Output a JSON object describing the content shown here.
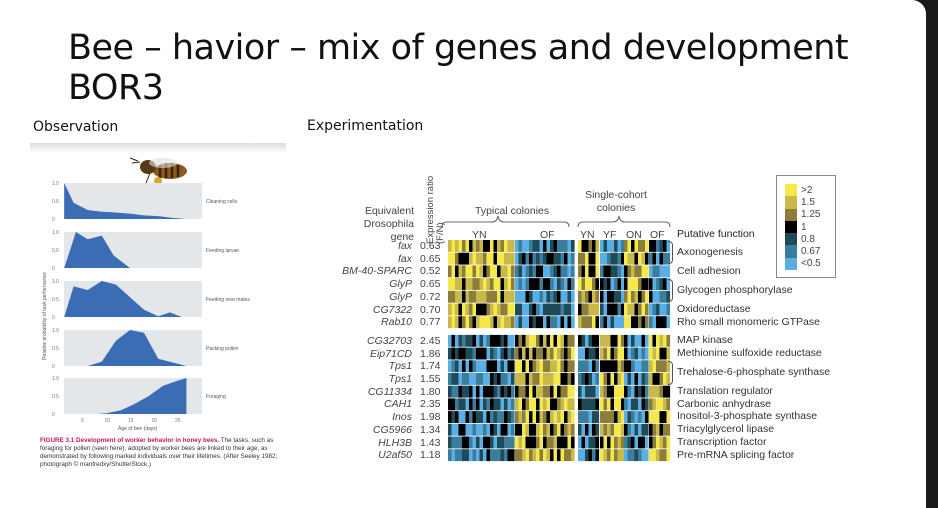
{
  "title_line1": "Bee – havior – mix of genes and development",
  "title_line2": "BOR3",
  "observation_label": "Observation",
  "experimentation_label": "Experimentation",
  "left_figure": {
    "y_axis_label": "Relative probability of task performance",
    "x_axis_label": "Age of bee (days)",
    "x_ticks": [
      "5",
      "10",
      "15",
      "20",
      "25"
    ],
    "y_ticks": [
      "0",
      "0.5",
      "1.0"
    ],
    "caption_bold": "FIGURE 3.1  Development of worker behavior in honey bees.",
    "caption_text": " The tasks, such as foraging for pollen (seen here), adopted by worker bees are linked to their age, as demonstrated by following marked individuals over their lifetimes. (After Seeley 1982; photograph © manfredxy/ShutterStock.)"
  },
  "chart_data": {
    "type": "area",
    "xlabel": "Age of bee (days)",
    "ylabel": "Relative probability of task performance",
    "xlim": [
      1,
      28
    ],
    "ylim": [
      0,
      1
    ],
    "series": [
      {
        "name": "Cleaning cells",
        "x": [
          1,
          3,
          6,
          9,
          12,
          15,
          18,
          21,
          24,
          27
        ],
        "y": [
          1,
          0.45,
          0.25,
          0.2,
          0.18,
          0.15,
          0.1,
          0.08,
          0.03,
          0
        ]
      },
      {
        "name": "Feeding larvae",
        "x": [
          1,
          3.5,
          6,
          9,
          11.5,
          15
        ],
        "y": [
          0,
          1,
          0.8,
          0.9,
          0.35,
          0
        ]
      },
      {
        "name": "Feeding nest mates",
        "x": [
          1,
          3,
          6,
          9,
          12,
          15,
          18,
          21,
          23.5,
          26
        ],
        "y": [
          0,
          0.85,
          0.75,
          1,
          0.9,
          0.55,
          0.2,
          0.02,
          0.13,
          0
        ]
      },
      {
        "name": "Packing pollen",
        "x": [
          6,
          9,
          12,
          15,
          18,
          21,
          24,
          27
        ],
        "y": [
          0,
          0.12,
          0.7,
          1,
          0.92,
          0.2,
          0.1,
          0
        ]
      },
      {
        "name": "Foraging",
        "x": [
          8,
          10,
          13,
          16,
          19,
          22,
          25,
          27,
          27
        ],
        "y": [
          0,
          0.02,
          0.1,
          0.28,
          0.5,
          0.78,
          0.92,
          1,
          0
        ]
      }
    ]
  },
  "heatmap": {
    "hdr_gene": [
      "Equivalent",
      "Drosophila",
      "gene"
    ],
    "hdr_ratio": "Expression ratio (F/N)",
    "hdr_typical": "Typical colonies",
    "hdr_single": [
      "Single-cohort",
      "colonies"
    ],
    "cols_typical": [
      "YN",
      "OF"
    ],
    "cols_single": [
      "YN",
      "YF",
      "ON",
      "OF"
    ],
    "hdr_function": "Putative function",
    "legend": [
      {
        "label": ">2",
        "color": "#f5e84a"
      },
      {
        "label": "1.5",
        "color": "#c9b84a"
      },
      {
        "label": "1.25",
        "color": "#8c7e3a"
      },
      {
        "label": "1",
        "color": "#000000"
      },
      {
        "label": "0.8",
        "color": "#1f4a57"
      },
      {
        "label": "0.67",
        "color": "#3b7d9c"
      },
      {
        "label": "<0.5",
        "color": "#5aaee6"
      }
    ],
    "rows": [
      {
        "gene": "fax",
        "ratio": "0.63"
      },
      {
        "gene": "fax",
        "ratio": "0.65"
      },
      {
        "gene": "BM-40-SPARC",
        "ratio": "0.52"
      },
      {
        "gene": "GlyP",
        "ratio": "0.65"
      },
      {
        "gene": "GlyP",
        "ratio": "0.72"
      },
      {
        "gene": "CG7322",
        "ratio": "0.70"
      },
      {
        "gene": "Rab10",
        "ratio": "0.77"
      },
      {
        "gene": "CG32703",
        "ratio": "2.45"
      },
      {
        "gene": "Eip71CD",
        "ratio": "1.86"
      },
      {
        "gene": "Tps1",
        "ratio": "1.74"
      },
      {
        "gene": "Tps1",
        "ratio": "1.55"
      },
      {
        "gene": "CG11334",
        "ratio": "1.80"
      },
      {
        "gene": "CAH1",
        "ratio": "2.35"
      },
      {
        "gene": "Inos",
        "ratio": "1.98"
      },
      {
        "gene": "CG5966",
        "ratio": "1.34"
      },
      {
        "gene": "HLH3B",
        "ratio": "1.43"
      },
      {
        "gene": "U2af50",
        "ratio": "1.18"
      }
    ],
    "functions": [
      {
        "label": "Axonogenesis",
        "rows": [
          0,
          1
        ]
      },
      {
        "label": "Cell adhesion",
        "rows": [
          2
        ]
      },
      {
        "label": "Glycogen phosphorylase",
        "rows": [
          3,
          4
        ]
      },
      {
        "label": "Oxidoreductase",
        "rows": [
          5
        ]
      },
      {
        "label": "Rho small monomeric GTPase",
        "rows": [
          6
        ]
      },
      {
        "label": "MAP kinase",
        "rows": [
          7
        ]
      },
      {
        "label": "Methionine sulfoxide reductase",
        "rows": [
          8
        ]
      },
      {
        "label": "Trehalose-6-phosphate synthase",
        "rows": [
          9,
          10
        ]
      },
      {
        "label": "Translation regulator",
        "rows": [
          11
        ]
      },
      {
        "label": "Carbonic anhydrase",
        "rows": [
          12
        ]
      },
      {
        "label": "Inositol-3-phosphate synthase",
        "rows": [
          13
        ]
      },
      {
        "label": "Triacylglycerol lipase",
        "rows": [
          14
        ]
      },
      {
        "label": "Transcription factor",
        "rows": [
          15
        ]
      },
      {
        "label": "Pre-mRNA splicing factor",
        "rows": [
          16
        ]
      }
    ]
  }
}
